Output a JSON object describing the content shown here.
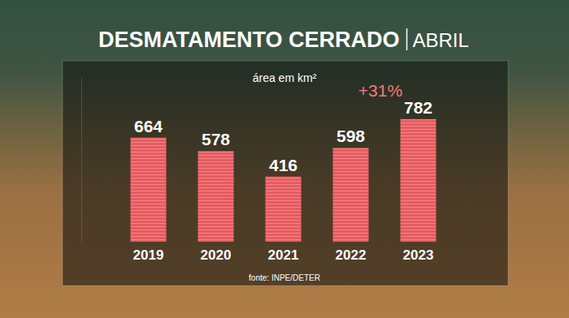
{
  "chart_data": {
    "type": "bar",
    "title": "DESMATAMENTO CERRADO",
    "subtitle": "ABRIL",
    "ylabel": "área em km²",
    "annotations": [
      "+31%"
    ],
    "source": "fonte: INPE/DETER",
    "categories": [
      "2019",
      "2020",
      "2021",
      "2022",
      "2023"
    ],
    "values": [
      664,
      578,
      416,
      598,
      782
    ],
    "color": "#e85a5e",
    "ylim": [
      0,
      1050
    ],
    "yticks": [],
    "data_labels": true,
    "tick_labels": "x",
    "grid": false
  }
}
